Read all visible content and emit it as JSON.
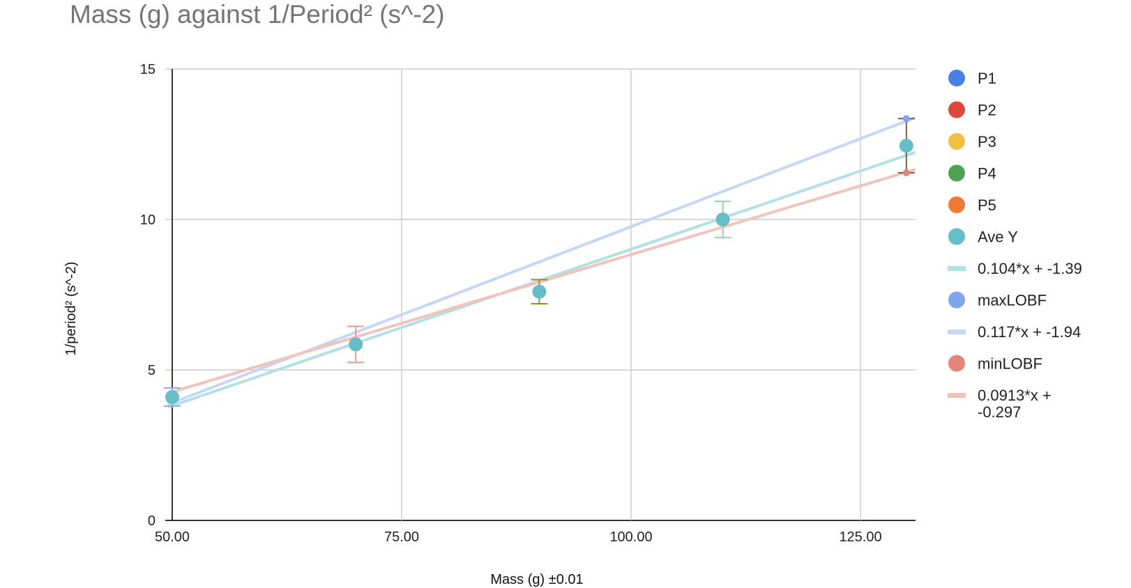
{
  "chart_data": {
    "type": "scatter",
    "title": "Mass (g) against 1/Period² (s^-2)",
    "xlabel": "Mass (g) ±0.01",
    "ylabel": "1/period² (s^-2)",
    "xlim": [
      50,
      131
    ],
    "ylim": [
      0,
      15
    ],
    "x_ticks": [
      "50.00",
      "75.00",
      "100.00",
      "125.00"
    ],
    "x_tick_values": [
      50,
      75,
      100,
      125
    ],
    "y_ticks": [
      "0",
      "5",
      "10",
      "15"
    ],
    "y_tick_values": [
      0,
      5,
      10,
      15
    ],
    "grid": true,
    "legend_position": "right",
    "series": [
      {
        "name": "P1",
        "color": "#4a7fe3",
        "x": [
          50
        ],
        "y": [
          4.0
        ]
      },
      {
        "name": "P2",
        "color": "#d9483b",
        "x": [
          50
        ],
        "y": [
          4.2
        ]
      },
      {
        "name": "P3",
        "color": "#f1bf42",
        "x": [],
        "y": []
      },
      {
        "name": "P4",
        "color": "#4fa152",
        "x": [],
        "y": []
      },
      {
        "name": "P5",
        "color": "#ef7a35",
        "x": [],
        "y": []
      },
      {
        "name": "Ave Y",
        "color": "#67bdc6",
        "x": [
          50,
          70,
          90,
          110,
          130
        ],
        "y": [
          4.1,
          5.85,
          7.6,
          10.0,
          12.45
        ],
        "error_y": [
          0.3,
          0.6,
          0.4,
          0.6,
          0.9
        ]
      },
      {
        "name": "maxLOBF",
        "color": "#7fa5ef",
        "x": [
          130
        ],
        "y": [
          13.35
        ]
      },
      {
        "name": "minLOBF",
        "color": "#e4857b",
        "x": [
          130
        ],
        "y": [
          11.55
        ]
      }
    ],
    "trendlines": [
      {
        "name": "0.104*x + -1.39",
        "color": "#b3e0e3",
        "slope": 0.104,
        "intercept": -1.39
      },
      {
        "name": "0.117*x + -1.94",
        "color": "#c6d6f7",
        "slope": 0.117,
        "intercept": -1.94
      },
      {
        "name": "0.0913*x + -0.297",
        "color": "#f1c3bd",
        "slope": 0.0913,
        "intercept": -0.297
      }
    ],
    "legend": [
      {
        "label": "P1",
        "color": "#4a7fe3",
        "marker": "circle"
      },
      {
        "label": "P2",
        "color": "#d9483b",
        "marker": "circle"
      },
      {
        "label": "P3",
        "color": "#f1bf42",
        "marker": "circle"
      },
      {
        "label": "P4",
        "color": "#4fa152",
        "marker": "circle"
      },
      {
        "label": "P5",
        "color": "#ef7a35",
        "marker": "circle"
      },
      {
        "label": "Ave Y",
        "color": "#67bdc6",
        "marker": "circle"
      },
      {
        "label": "0.104*x + -1.39",
        "color": "#b3e0e3",
        "marker": "line"
      },
      {
        "label": "maxLOBF",
        "color": "#7fa5ef",
        "marker": "circle"
      },
      {
        "label": "0.117*x + -1.94",
        "color": "#c6d6f7",
        "marker": "line"
      },
      {
        "label": "minLOBF",
        "color": "#e4857b",
        "marker": "circle"
      },
      {
        "label": "0.0913*x + -0.297",
        "label_lines": [
          "0.0913*x +",
          "-0.297"
        ],
        "color": "#f1c3bd",
        "marker": "line"
      }
    ]
  }
}
